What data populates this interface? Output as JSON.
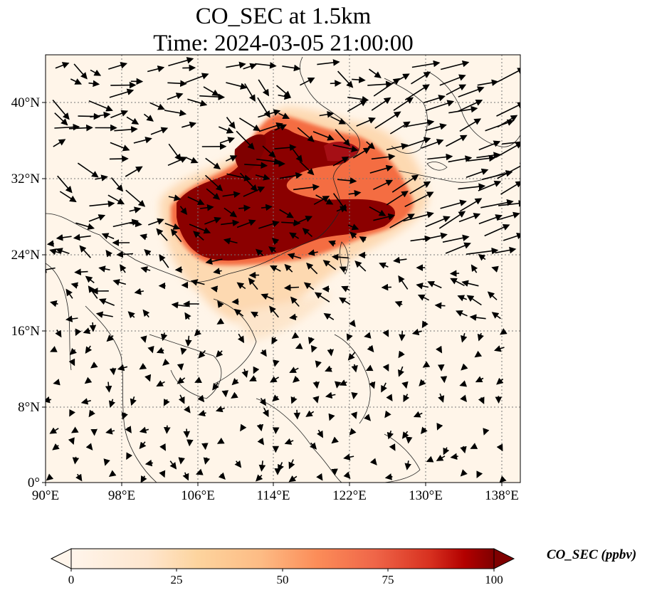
{
  "title": {
    "line1": "CO_SEC at 1.5km",
    "line2": "Time: 2024-03-05 21:00:00"
  },
  "map": {
    "lon_ticks": [
      "90°E",
      "98°E",
      "106°E",
      "114°E",
      "122°E",
      "130°E",
      "138°E"
    ],
    "lat_ticks": [
      "0°",
      "8°N",
      "16°N",
      "24°N",
      "32°N",
      "40°N"
    ],
    "lon_range": [
      90,
      140
    ],
    "lat_range": [
      0,
      45
    ],
    "gridlines": true,
    "background_color": "#fff5e9",
    "plume_color": "#7f0000",
    "coastline_color": "#222222",
    "wind_vectors": "black arrows"
  },
  "colorbar": {
    "label": "CO_SEC (ppbv)",
    "ticks": [
      "0",
      "25",
      "50",
      "75",
      "100"
    ],
    "range": [
      0,
      100
    ],
    "extend": "both",
    "colors": [
      "#fff5eb",
      "#fdd49e",
      "#fdbb84",
      "#fc8d59",
      "#ef6548",
      "#d7301f",
      "#b30000",
      "#7f0000"
    ]
  }
}
